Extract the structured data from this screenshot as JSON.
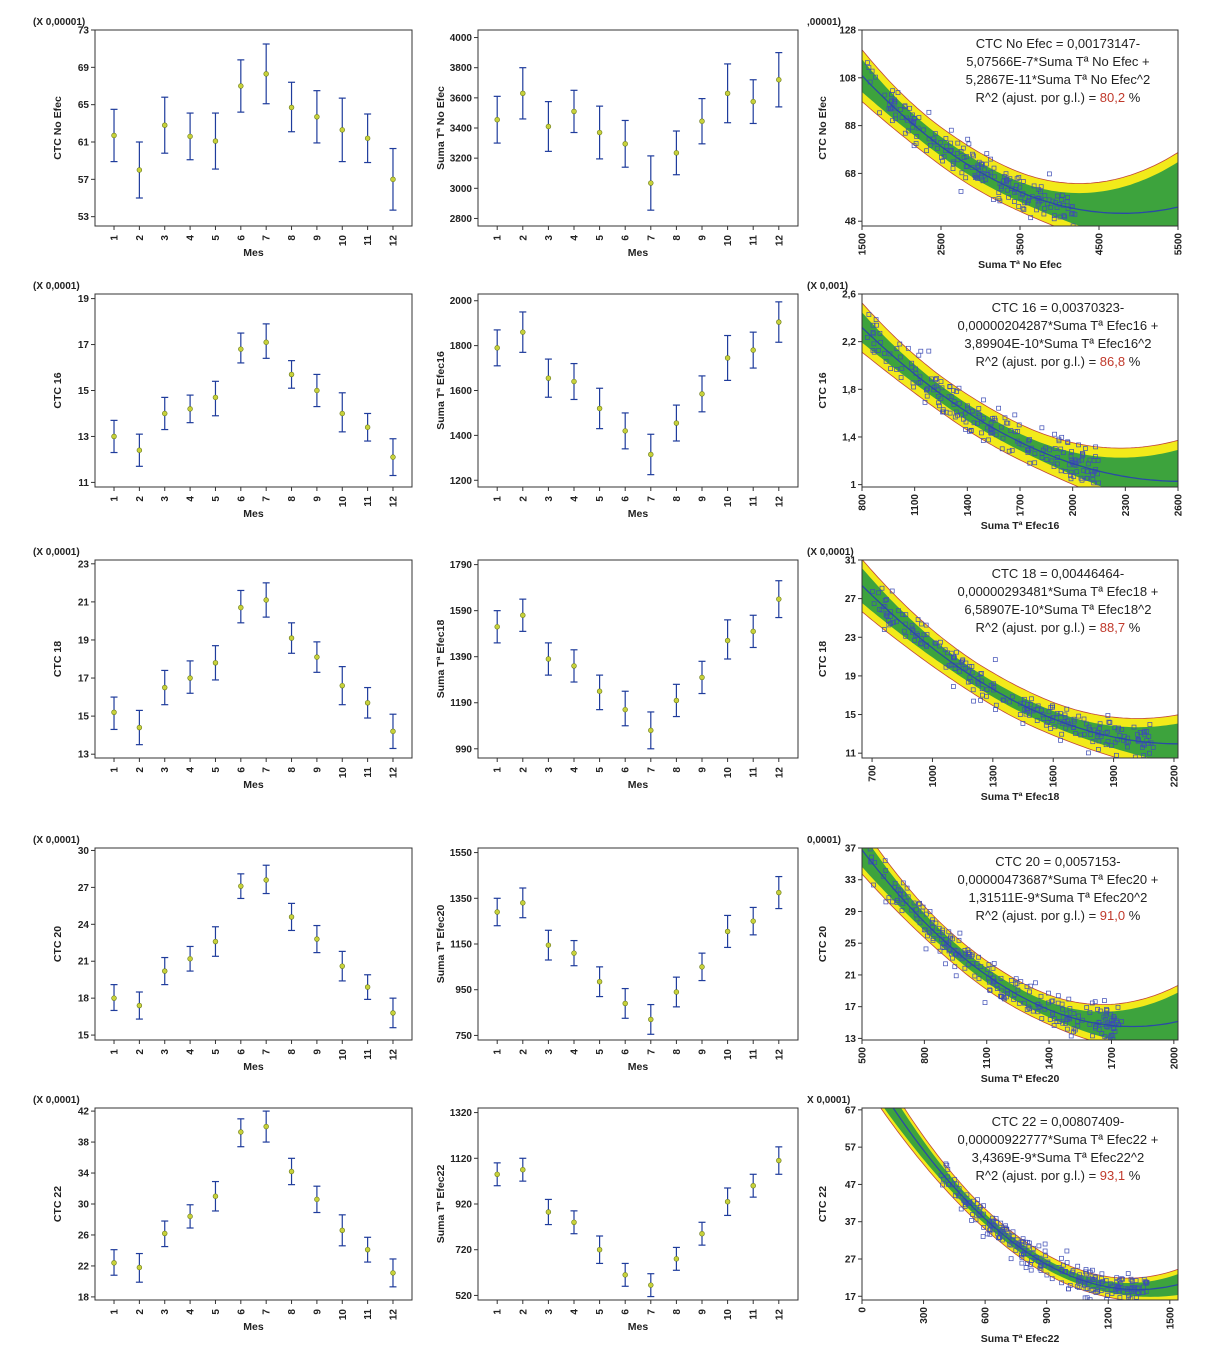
{
  "colors": {
    "axis": "#333333",
    "error_bar": "#1f3c9c",
    "mean_point": "#c8d23a",
    "band_outer": "#f2ea1a",
    "band_inner": "#3da33d",
    "band_edge": "#c0453a",
    "fit_line": "#2a4aa6",
    "points": "#3c4cb5",
    "r2_value": "#c0392b"
  },
  "chart_data": [
    {
      "id": "A1",
      "type": "errorbar",
      "scale_label": "(X 0,00001)",
      "xlabel": "Mes",
      "ylabel": "CTC No Efec",
      "categories": [
        "1",
        "2",
        "3",
        "4",
        "5",
        "6",
        "7",
        "8",
        "9",
        "10",
        "11",
        "12"
      ],
      "y_ticks": [
        "53",
        "57",
        "61",
        "65",
        "69",
        "73"
      ],
      "ylim": [
        52,
        73
      ],
      "values": [
        61.7,
        58.0,
        62.8,
        61.6,
        61.1,
        67.0,
        68.3,
        64.7,
        63.7,
        62.3,
        61.4,
        57.0
      ],
      "lower": [
        58.9,
        55.0,
        59.8,
        59.1,
        58.1,
        64.2,
        65.1,
        62.1,
        60.9,
        58.9,
        58.8,
        53.7
      ],
      "upper": [
        64.5,
        61.0,
        65.8,
        64.1,
        64.1,
        69.8,
        71.5,
        67.4,
        66.5,
        65.7,
        64.0,
        60.3
      ]
    },
    {
      "id": "A2",
      "type": "errorbar",
      "scale_label": "",
      "xlabel": "Mes",
      "ylabel": "Suma Tª No Efec",
      "categories": [
        "1",
        "2",
        "3",
        "4",
        "5",
        "6",
        "7",
        "8",
        "9",
        "10",
        "11",
        "12"
      ],
      "y_ticks": [
        "2800",
        "3000",
        "3200",
        "3400",
        "3600",
        "3800",
        "4000"
      ],
      "ylim": [
        2750,
        4050
      ],
      "values": [
        3455,
        3630,
        3410,
        3510,
        3370,
        3295,
        3035,
        3235,
        3445,
        3630,
        3575,
        3720
      ],
      "lower": [
        3300,
        3460,
        3245,
        3370,
        3195,
        3140,
        2855,
        3090,
        3295,
        3435,
        3430,
        3540
      ],
      "upper": [
        3610,
        3800,
        3575,
        3650,
        3545,
        3450,
        3215,
        3380,
        3595,
        3825,
        3720,
        3900
      ]
    },
    {
      "id": "A3",
      "type": "quadratic_fit",
      "scale_label": ",00001)",
      "xlabel": "Suma Tª No Efec",
      "ylabel": "CTC No Efec",
      "x_ticks": [
        "1500",
        "2500",
        "3500",
        "4500",
        "5500"
      ],
      "xlim": [
        1500,
        5500
      ],
      "y_ticks": [
        "48",
        "68",
        "88",
        "108",
        "128"
      ],
      "ylim": [
        46,
        128
      ],
      "coef": [
        173.147,
        -0.0507566,
        5.2867e-06
      ],
      "band_inner_half": 4,
      "band_outer_half": 8,
      "band_growth": 4,
      "points_range": [
        1550,
        4200
      ],
      "points_noise": 5,
      "points_count": 190,
      "y_floor": 46,
      "equation": [
        "CTC No Efec = 0,00173147-",
        "5,07566E-7*Suma Tª No Efec +",
        "5,2867E-11*Suma Tª No Efec^2"
      ],
      "r2_prefix": "R^2 (ajust. por g.l.) = ",
      "r2_value": "80,2",
      "r2_suffix": " %"
    },
    {
      "id": "B1",
      "type": "errorbar",
      "scale_label": "(X 0,0001)",
      "xlabel": "Mes",
      "ylabel": "CTC 16",
      "categories": [
        "1",
        "2",
        "3",
        "4",
        "5",
        "6",
        "7",
        "8",
        "9",
        "10",
        "11",
        "12"
      ],
      "y_ticks": [
        "11",
        "13",
        "15",
        "17",
        "19"
      ],
      "ylim": [
        10.8,
        19.2
      ],
      "values": [
        13.0,
        12.4,
        14.0,
        14.2,
        14.7,
        16.8,
        17.1,
        15.7,
        15.0,
        14.0,
        13.4,
        12.1
      ],
      "lower": [
        12.3,
        11.7,
        13.3,
        13.6,
        13.9,
        16.2,
        16.4,
        15.1,
        14.3,
        13.2,
        12.8,
        11.3
      ],
      "upper": [
        13.7,
        13.1,
        14.7,
        14.8,
        15.4,
        17.5,
        17.9,
        16.3,
        15.7,
        14.9,
        14.0,
        12.9
      ]
    },
    {
      "id": "B2",
      "type": "errorbar",
      "scale_label": "",
      "xlabel": "Mes",
      "ylabel": "Suma Tª Efec16",
      "categories": [
        "1",
        "2",
        "3",
        "4",
        "5",
        "6",
        "7",
        "8",
        "9",
        "10",
        "11",
        "12"
      ],
      "y_ticks": [
        "1200",
        "1400",
        "1600",
        "1800",
        "2000"
      ],
      "ylim": [
        1170,
        2030
      ],
      "values": [
        1790,
        1860,
        1655,
        1640,
        1520,
        1420,
        1315,
        1455,
        1585,
        1745,
        1780,
        1905
      ],
      "lower": [
        1710,
        1770,
        1570,
        1560,
        1430,
        1340,
        1225,
        1375,
        1505,
        1645,
        1700,
        1815
      ],
      "upper": [
        1870,
        1950,
        1740,
        1720,
        1610,
        1500,
        1405,
        1535,
        1665,
        1845,
        1860,
        1995
      ]
    },
    {
      "id": "B3",
      "type": "quadratic_fit",
      "scale_label": "(X 0,001)",
      "xlabel": "Suma  Tª Efec16",
      "ylabel": "CTC 16",
      "x_ticks": [
        "800",
        "1100",
        "1400",
        "1700",
        "2000",
        "2300",
        "2600"
      ],
      "xlim": [
        800,
        2600
      ],
      "y_ticks": [
        "1",
        "1,4",
        "1,8",
        "2,2",
        "2,6"
      ],
      "ylim": [
        0.98,
        2.6
      ],
      "coef": [
        3.70323,
        -0.00204287,
        3.89904e-07
      ],
      "band_inner_half": 0.07,
      "band_outer_half": 0.15,
      "band_growth": 0.06,
      "points_range": [
        820,
        2150
      ],
      "points_noise": 0.12,
      "points_count": 200,
      "y_floor": 0.98,
      "equation": [
        "CTC 16 = 0,00370323-",
        "0,00000204287*Suma Tª Efec16 +",
        "3,89904E-10*Suma Tª Efec16^2"
      ],
      "r2_prefix": "R^2 (ajust. por g.l.) = ",
      "r2_value": "86,8",
      "r2_suffix": " %"
    },
    {
      "id": "C1",
      "type": "errorbar",
      "scale_label": "(X 0,0001)",
      "xlabel": "Mes",
      "ylabel": "CTC 18",
      "categories": [
        "1",
        "2",
        "3",
        "4",
        "5",
        "6",
        "7",
        "8",
        "9",
        "10",
        "11",
        "12"
      ],
      "y_ticks": [
        "13",
        "15",
        "17",
        "19",
        "21",
        "23"
      ],
      "ylim": [
        12.8,
        23.2
      ],
      "values": [
        15.2,
        14.4,
        16.5,
        17.0,
        17.8,
        20.7,
        21.1,
        19.1,
        18.1,
        16.6,
        15.7,
        14.2
      ],
      "lower": [
        14.3,
        13.5,
        15.6,
        16.2,
        16.9,
        19.9,
        20.2,
        18.3,
        17.3,
        15.6,
        14.9,
        13.3
      ],
      "upper": [
        16.0,
        15.3,
        17.4,
        17.9,
        18.7,
        21.6,
        22.0,
        19.9,
        18.9,
        17.6,
        16.5,
        15.1
      ]
    },
    {
      "id": "C2",
      "type": "errorbar",
      "scale_label": "",
      "xlabel": "Mes",
      "ylabel": "Suma Tª Efec18",
      "categories": [
        "1",
        "2",
        "3",
        "4",
        "5",
        "6",
        "7",
        "8",
        "9",
        "10",
        "11",
        "12"
      ],
      "y_ticks": [
        "990",
        "1190",
        "1390",
        "1590",
        "1790"
      ],
      "ylim": [
        950,
        1810
      ],
      "values": [
        1520,
        1570,
        1380,
        1350,
        1240,
        1160,
        1070,
        1200,
        1300,
        1460,
        1500,
        1640
      ],
      "lower": [
        1450,
        1500,
        1310,
        1280,
        1160,
        1090,
        990,
        1130,
        1230,
        1380,
        1430,
        1560
      ],
      "upper": [
        1590,
        1640,
        1450,
        1420,
        1310,
        1240,
        1150,
        1270,
        1370,
        1550,
        1570,
        1720
      ]
    },
    {
      "id": "C3",
      "type": "quadratic_fit",
      "scale_label": "(X 0,0001)",
      "xlabel": "Suma  Tª Efec18",
      "ylabel": "CTC 18",
      "x_ticks": [
        "700",
        "1000",
        "1300",
        "1600",
        "1900",
        "2200"
      ],
      "xlim": [
        650,
        2220
      ],
      "y_ticks": [
        "11",
        "15",
        "19",
        "23",
        "27",
        "31"
      ],
      "ylim": [
        10.5,
        31
      ],
      "coef": [
        44.6464,
        -0.0293481,
        6.58907e-06
      ],
      "band_inner_half": 0.8,
      "band_outer_half": 1.7,
      "band_growth": 0.6,
      "points_range": [
        690,
        2100
      ],
      "points_noise": 1.2,
      "points_count": 220,
      "y_floor": 10.5,
      "equation": [
        "CTC 18 = 0,00446464-",
        "0,00000293481*Suma  Tª Efec18 +",
        "6,58907E-10*Suma  Tª Efec18^2"
      ],
      "r2_prefix": "R^2 (ajust. por g.l.) = ",
      "r2_value": "88,7",
      "r2_suffix": " %"
    },
    {
      "id": "D1",
      "type": "errorbar",
      "scale_label": "(X 0,0001)",
      "xlabel": "Mes",
      "ylabel": "CTC 20",
      "categories": [
        "1",
        "2",
        "3",
        "4",
        "5",
        "6",
        "7",
        "8",
        "9",
        "10",
        "11",
        "12"
      ],
      "y_ticks": [
        "15",
        "18",
        "21",
        "24",
        "27",
        "30"
      ],
      "ylim": [
        14.6,
        30.2
      ],
      "values": [
        18.0,
        17.4,
        20.2,
        21.2,
        22.6,
        27.1,
        27.6,
        24.6,
        22.8,
        20.6,
        18.9,
        16.8
      ],
      "lower": [
        17.0,
        16.3,
        19.1,
        20.2,
        21.4,
        26.1,
        26.5,
        23.5,
        21.7,
        19.4,
        17.9,
        15.6
      ],
      "upper": [
        19.1,
        18.5,
        21.3,
        22.2,
        23.8,
        28.1,
        28.8,
        25.7,
        23.9,
        21.8,
        19.9,
        18.0
      ]
    },
    {
      "id": "D2",
      "type": "errorbar",
      "scale_label": "",
      "xlabel": "Mes",
      "ylabel": "Suma Tª Efec20",
      "categories": [
        "1",
        "2",
        "3",
        "4",
        "5",
        "6",
        "7",
        "8",
        "9",
        "10",
        "11",
        "12"
      ],
      "y_ticks": [
        "750",
        "950",
        "1150",
        "1350",
        "1550"
      ],
      "ylim": [
        730,
        1570
      ],
      "values": [
        1290,
        1330,
        1145,
        1110,
        985,
        890,
        820,
        940,
        1050,
        1205,
        1250,
        1375
      ],
      "lower": [
        1230,
        1265,
        1080,
        1055,
        920,
        825,
        755,
        875,
        990,
        1135,
        1190,
        1305
      ],
      "upper": [
        1350,
        1395,
        1210,
        1165,
        1050,
        955,
        885,
        1005,
        1110,
        1275,
        1310,
        1445
      ]
    },
    {
      "id": "D3",
      "type": "quadratic_fit",
      "scale_label": "0,0001)",
      "xlabel": "Suma  Tª Efec20",
      "ylabel": "CTC 20",
      "x_ticks": [
        "500",
        "800",
        "1100",
        "1400",
        "1700",
        "2000"
      ],
      "xlim": [
        500,
        2020
      ],
      "y_ticks": [
        "13",
        "17",
        "21",
        "25",
        "29",
        "33",
        "37"
      ],
      "ylim": [
        12.8,
        37
      ],
      "coef": [
        57.153,
        -0.0473687,
        1.31511e-05
      ],
      "band_inner_half": 0.9,
      "band_outer_half": 1.8,
      "band_growth": 1.0,
      "points_range": [
        530,
        1750
      ],
      "points_noise": 1.5,
      "points_count": 240,
      "y_floor": 12.8,
      "equation": [
        "CTC 20 = 0,0057153-",
        "0,00000473687*Suma Tª Efec20 +",
        "1,31511E-9*Suma Tª Efec20^2"
      ],
      "r2_prefix": "R^2 (ajust. por g.l.) = ",
      "r2_value": "91,0",
      "r2_suffix": " %"
    },
    {
      "id": "E1",
      "type": "errorbar",
      "scale_label": "(X 0,0001)",
      "xlabel": "Mes",
      "ylabel": "CTC 22",
      "categories": [
        "1",
        "2",
        "3",
        "4",
        "5",
        "6",
        "7",
        "8",
        "9",
        "10",
        "11",
        "12"
      ],
      "y_ticks": [
        "18",
        "22",
        "26",
        "30",
        "34",
        "38",
        "42"
      ],
      "ylim": [
        17.6,
        42.4
      ],
      "values": [
        22.4,
        21.8,
        26.2,
        28.4,
        31.0,
        39.3,
        40.0,
        34.2,
        30.6,
        26.6,
        24.1,
        21.1
      ],
      "lower": [
        20.8,
        19.9,
        24.5,
        26.9,
        29.1,
        37.4,
        38.0,
        32.5,
        28.9,
        24.6,
        22.5,
        19.3
      ],
      "upper": [
        24.1,
        23.6,
        27.8,
        29.9,
        32.9,
        41.0,
        42.0,
        35.9,
        32.3,
        28.6,
        25.7,
        22.9
      ]
    },
    {
      "id": "E2",
      "type": "errorbar",
      "scale_label": "",
      "xlabel": "Mes",
      "ylabel": "Suma Tª Efec22",
      "categories": [
        "1",
        "2",
        "3",
        "4",
        "5",
        "6",
        "7",
        "8",
        "9",
        "10",
        "11",
        "12"
      ],
      "y_ticks": [
        "520",
        "720",
        "920",
        "1120",
        "1320"
      ],
      "ylim": [
        500,
        1340
      ],
      "values": [
        1050,
        1070,
        885,
        840,
        720,
        610,
        565,
        680,
        790,
        930,
        1000,
        1110
      ],
      "lower": [
        1000,
        1020,
        830,
        790,
        660,
        560,
        515,
        630,
        740,
        870,
        950,
        1050
      ],
      "upper": [
        1100,
        1120,
        940,
        890,
        780,
        660,
        615,
        730,
        840,
        990,
        1050,
        1170
      ]
    },
    {
      "id": "E3",
      "type": "quadratic_fit",
      "scale_label": "X 0,0001)",
      "xlabel": "Suma  Tª Efec22",
      "ylabel": "CTC 22",
      "x_ticks": [
        "0",
        "300",
        "600",
        "900",
        "1200",
        "1500"
      ],
      "xlim": [
        0,
        1540
      ],
      "y_ticks": [
        "17",
        "27",
        "37",
        "47",
        "57",
        "67"
      ],
      "ylim": [
        16,
        67.5
      ],
      "coef": [
        80.7409,
        -0.0922777,
        3.4369e-05
      ],
      "band_inner_half": 1.3,
      "band_outer_half": 2.6,
      "band_growth": 1.2,
      "points_range": [
        380,
        1400
      ],
      "points_noise": 2.5,
      "points_count": 240,
      "y_floor": 16,
      "equation": [
        "CTC 22 = 0,00807409-",
        "0,00000922777*Suma Tª Efec22 +",
        "3,4369E-9*Suma Tª Efec22^2"
      ],
      "r2_prefix": "R^2 (ajust.  por g.l.) = ",
      "r2_value": "93,1",
      "r2_suffix": " %"
    }
  ]
}
